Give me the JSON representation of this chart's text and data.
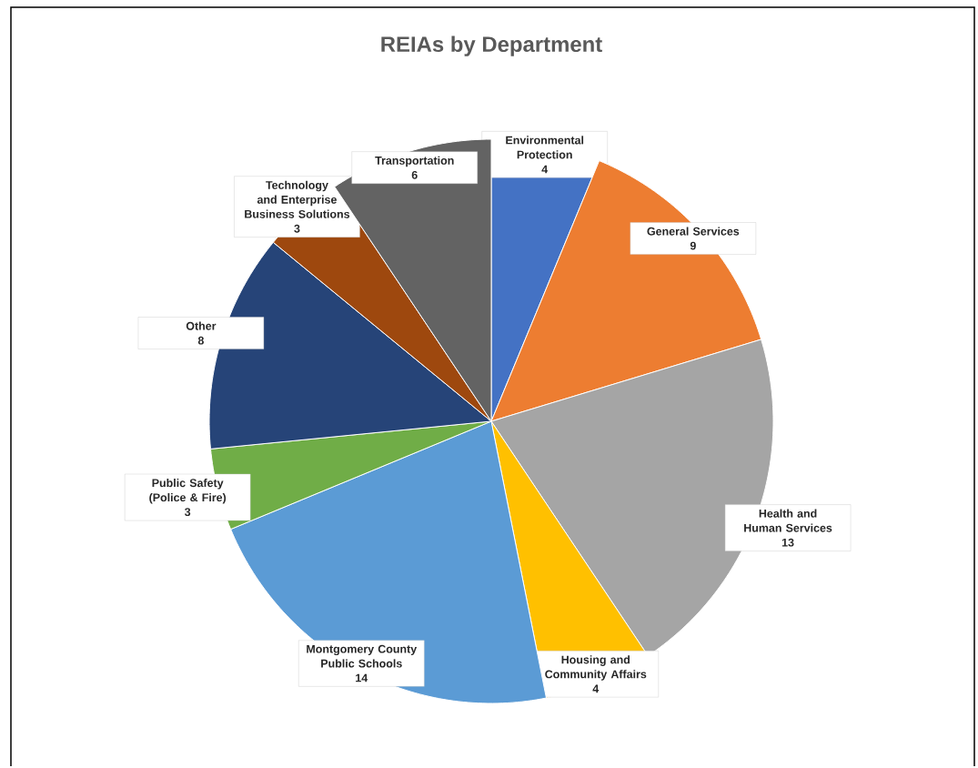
{
  "chart_data": {
    "type": "pie",
    "title": "REIAs by Department",
    "categories": [
      "Environmental Protection",
      "General Services",
      "Health and Human Services",
      "Housing and Community Affairs",
      "Montgomery County Public Schools",
      "Public Safety (Police & Fire)",
      "Other",
      "Technology and Enterprise Business Solutions",
      "Transportation"
    ],
    "values": [
      4,
      9,
      13,
      4,
      14,
      3,
      8,
      3,
      6
    ],
    "colors": [
      "#4472c4",
      "#ed7d31",
      "#a5a5a5",
      "#ffc000",
      "#5b9bd5",
      "#70ad47",
      "#264478",
      "#9e480e",
      "#636363"
    ],
    "data_labels": true
  }
}
